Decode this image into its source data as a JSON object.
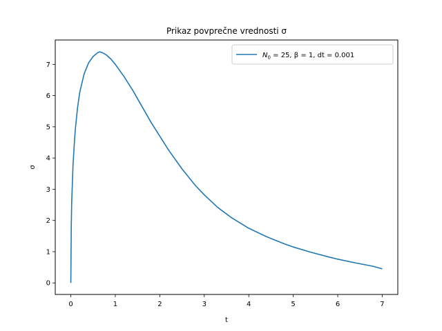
{
  "chart_data": {
    "type": "line",
    "title": "Prikaz povprečne vrednosti σ",
    "xlabel": "t",
    "ylabel": "σ",
    "xlim": [
      -0.35,
      7.35
    ],
    "ylim": [
      -0.37,
      7.78
    ],
    "xticks": [
      0,
      1,
      2,
      3,
      4,
      5,
      6,
      7
    ],
    "yticks": [
      0,
      1,
      2,
      3,
      4,
      5,
      6,
      7
    ],
    "grid": false,
    "legend_position": "top-right",
    "series": [
      {
        "name": "N0 = 25, β = 1, dt = 0.001",
        "legend_parts": {
          "sym": "N",
          "sub": "0",
          "rest": " = 25, β = 1, dt = 0.001"
        },
        "color": "#1f77b4",
        "x": [
          0,
          0.01,
          0.02,
          0.05,
          0.08,
          0.1,
          0.15,
          0.2,
          0.3,
          0.4,
          0.5,
          0.6,
          0.65,
          0.7,
          0.8,
          0.9,
          1.0,
          1.2,
          1.4,
          1.6,
          1.8,
          2.0,
          2.2,
          2.5,
          2.8,
          3.0,
          3.3,
          3.6,
          4.0,
          4.4,
          4.8,
          5.0,
          5.4,
          5.8,
          6.0,
          6.4,
          6.8,
          7.0
        ],
        "y": [
          0,
          1.8,
          2.6,
          3.8,
          4.5,
          4.9,
          5.6,
          6.1,
          6.7,
          7.05,
          7.25,
          7.37,
          7.4,
          7.38,
          7.3,
          7.17,
          7.0,
          6.6,
          6.15,
          5.65,
          5.15,
          4.7,
          4.25,
          3.65,
          3.12,
          2.82,
          2.42,
          2.1,
          1.75,
          1.48,
          1.25,
          1.15,
          0.98,
          0.83,
          0.76,
          0.64,
          0.53,
          0.45
        ]
      }
    ]
  }
}
